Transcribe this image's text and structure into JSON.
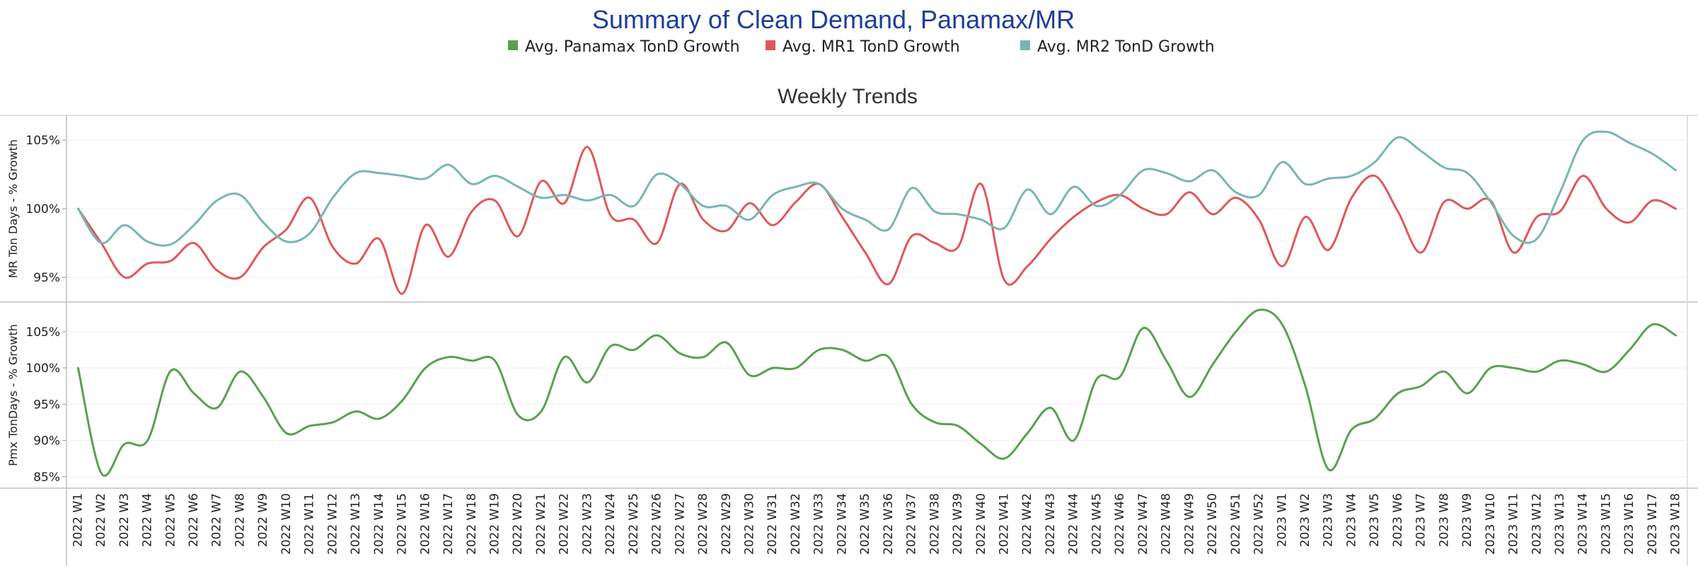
{
  "chart_data": {
    "type": "line",
    "title": "Summary of Clean Demand, Panamax/MR",
    "subtitle": "Weekly Trends",
    "legend": [
      {
        "name": "Avg. Panamax TonD Growth",
        "color": "#59a14f"
      },
      {
        "name": "Avg. MR1 TonD Growth",
        "color": "#e15759"
      },
      {
        "name": "Avg. MR2 TonD Growth",
        "color": "#76b7b2"
      }
    ],
    "x_labels": [
      "2022 W1",
      "2022 W2",
      "2022 W3",
      "2022 W4",
      "2022 W5",
      "2022 W6",
      "2022 W7",
      "2022 W8",
      "2022 W9",
      "2022 W10",
      "2022 W11",
      "2022 W12",
      "2022 W13",
      "2022 W14",
      "2022 W15",
      "2022 W16",
      "2022 W17",
      "2022 W18",
      "2022 W19",
      "2022 W20",
      "2022 W21",
      "2022 W22",
      "2022 W23",
      "2022 W24",
      "2022 W25",
      "2022 W26",
      "2022 W27",
      "2022 W28",
      "2022 W29",
      "2022 W30",
      "2022 W31",
      "2022 W32",
      "2022 W33",
      "2022 W34",
      "2022 W35",
      "2022 W36",
      "2022 W37",
      "2022 W38",
      "2022 W39",
      "2022 W40",
      "2022 W41",
      "2022 W42",
      "2022 W43",
      "2022 W44",
      "2022 W45",
      "2022 W46",
      "2022 W47",
      "2022 W48",
      "2022 W49",
      "2022 W50",
      "2022 W51",
      "2022 W52",
      "2023 W1",
      "2023 W2",
      "2023 W3",
      "2023 W4",
      "2023 W5",
      "2023 W6",
      "2023 W7",
      "2023 W8",
      "2023 W9",
      "2023 W10",
      "2023 W11",
      "2023 W12",
      "2023 W13",
      "2023 W14",
      "2023 W15",
      "2023 W16",
      "2023 W17",
      "2023 W18"
    ],
    "panels": [
      {
        "ylabel": "MR Ton Days - % Growth",
        "ylim": [
          93.5,
          106.5
        ],
        "yticks": [
          95,
          100,
          105
        ],
        "ytick_labels": [
          "95%",
          "100%",
          "105%"
        ],
        "series": [
          {
            "name": "Avg. MR1 TonD Growth",
            "color": "#e15759",
            "values": [
              100,
              97.5,
              95,
              96,
              96.2,
              97.5,
              95.5,
              95,
              97.2,
              98.5,
              100.8,
              97.2,
              96,
              97.8,
              93.8,
              98.8,
              96.5,
              99.8,
              100.6,
              98,
              102,
              100.4,
              104.5,
              99.5,
              99.2,
              97.5,
              101.8,
              99.2,
              98.4,
              100.4,
              98.8,
              100.5,
              101.8,
              99.4,
              96.8,
              94.5,
              98,
              97.5,
              97.2,
              101.8,
              94.8,
              95.8,
              97.8,
              99.4,
              100.5,
              101,
              100,
              99.6,
              101.2,
              99.6,
              100.8,
              99.2,
              95.8,
              99.4,
              97,
              100.8,
              102.4,
              99.8,
              96.8,
              100.5,
              100,
              100.6,
              96.8,
              99.4,
              99.8,
              102.4,
              100,
              99,
              100.6,
              100
            ]
          },
          {
            "name": "Avg. MR2 TonD Growth",
            "color": "#76b7b2",
            "values": [
              100,
              97.5,
              98.8,
              97.6,
              97.4,
              98.8,
              100.6,
              101,
              99,
              97.6,
              98.2,
              100.8,
              102.6,
              102.6,
              102.4,
              102.2,
              103.2,
              101.8,
              102.4,
              101.6,
              100.8,
              101,
              100.6,
              101,
              100.2,
              102.5,
              101.8,
              100.2,
              100.2,
              99.2,
              101,
              101.6,
              101.8,
              100,
              99.2,
              98.5,
              101.5,
              99.8,
              99.6,
              99.2,
              98.6,
              101.4,
              99.6,
              101.6,
              100.2,
              101,
              102.8,
              102.6,
              102,
              102.8,
              101.2,
              101,
              103.4,
              101.8,
              102.2,
              102.4,
              103.4,
              105.2,
              104.2,
              103,
              102.6,
              100.5,
              98,
              97.8,
              101.2,
              105,
              105.6,
              104.8,
              104,
              102.8
            ]
          }
        ]
      },
      {
        "ylabel": "Pmx TonDays - % Growth",
        "ylim": [
          84,
          108.5
        ],
        "yticks": [
          85,
          90,
          95,
          100,
          105
        ],
        "ytick_labels": [
          "85%",
          "90%",
          "95%",
          "100%",
          "105%"
        ],
        "series": [
          {
            "name": "Avg. Panamax TonD Growth",
            "color": "#59a14f",
            "values": [
              100,
              85.5,
              89.5,
              90,
              99.6,
              96.5,
              94.5,
              99.5,
              96,
              91,
              92,
              92.5,
              94,
              93,
              95.5,
              100,
              101.5,
              101,
              101,
              93.5,
              94,
              101.5,
              98,
              103,
              102.5,
              104.5,
              102,
              101.5,
              103.5,
              99,
              100,
              100,
              102.5,
              102.5,
              101,
              101.5,
              95,
              92.5,
              92,
              89.5,
              87.5,
              91,
              94.5,
              90,
              98.5,
              98.8,
              105.5,
              101,
              96,
              100.5,
              105,
              108,
              106,
              97.5,
              86,
              91.5,
              93,
              96.5,
              97.5,
              99.5,
              96.5,
              100,
              100,
              99.5,
              101,
              100.5,
              99.5,
              102.5,
              106,
              104.5
            ]
          }
        ]
      }
    ],
    "grid": true
  }
}
